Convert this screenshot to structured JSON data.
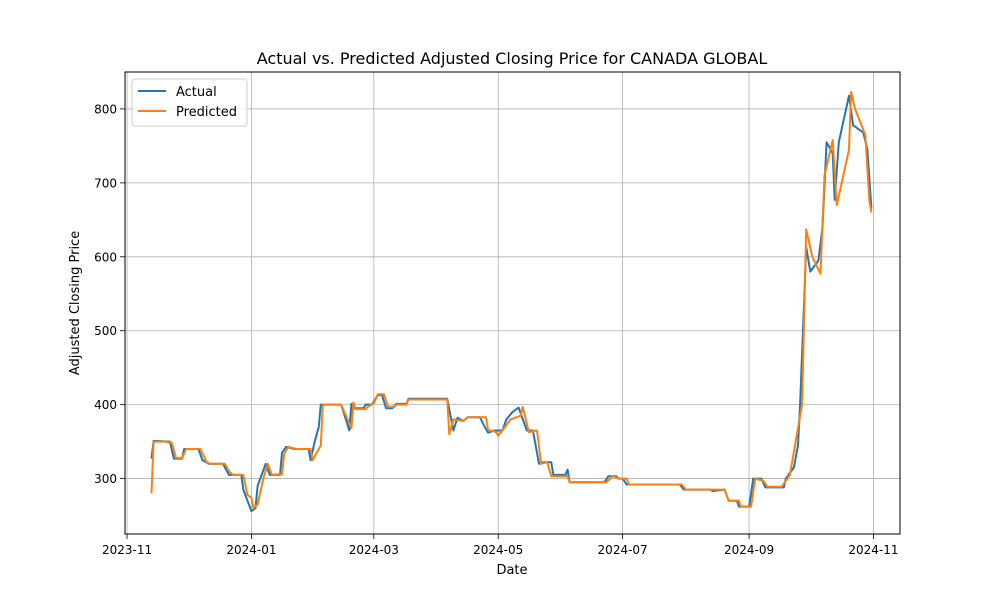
{
  "chart_data": {
    "type": "line",
    "title": "Actual vs. Predicted Adjusted Closing Price for CANADA GLOBAL",
    "xlabel": "Date",
    "ylabel": "Adjusted Closing Price",
    "grid": true,
    "legend_position": "top-left",
    "xlim": [
      "2023-10-31",
      "2024-11-14"
    ],
    "ylim": [
      225,
      850
    ],
    "x_ticks": [
      "2023-11",
      "2024-01",
      "2024-03",
      "2024-05",
      "2024-07",
      "2024-09",
      "2024-11"
    ],
    "x_tick_dates": [
      "2023-11-01",
      "2024-01-01",
      "2024-03-01",
      "2024-05-01",
      "2024-07-01",
      "2024-09-01",
      "2024-11-01"
    ],
    "y_ticks": [
      300,
      400,
      500,
      600,
      700,
      800
    ],
    "series": [
      {
        "name": "Actual",
        "color": "#1f77b4",
        "points": [
          [
            "2023-11-13",
            327
          ],
          [
            "2023-11-14",
            351
          ],
          [
            "2023-11-22",
            350
          ],
          [
            "2023-11-24",
            327
          ],
          [
            "2023-11-28",
            327
          ],
          [
            "2023-11-29",
            340
          ],
          [
            "2023-12-06",
            340
          ],
          [
            "2023-12-08",
            325
          ],
          [
            "2023-12-11",
            320
          ],
          [
            "2023-12-18",
            320
          ],
          [
            "2023-12-21",
            305
          ],
          [
            "2023-12-27",
            305
          ],
          [
            "2023-12-28",
            285
          ],
          [
            "2024-01-01",
            256
          ],
          [
            "2024-01-03",
            260
          ],
          [
            "2024-01-04",
            290
          ],
          [
            "2024-01-08",
            320
          ],
          [
            "2024-01-10",
            305
          ],
          [
            "2024-01-15",
            305
          ],
          [
            "2024-01-16",
            335
          ],
          [
            "2024-01-18",
            343
          ],
          [
            "2024-01-22",
            340
          ],
          [
            "2024-01-29",
            340
          ],
          [
            "2024-01-30",
            325
          ],
          [
            "2024-02-01",
            350
          ],
          [
            "2024-02-03",
            370
          ],
          [
            "2024-02-04",
            400
          ],
          [
            "2024-02-14",
            400
          ],
          [
            "2024-02-18",
            365
          ],
          [
            "2024-02-19",
            401
          ],
          [
            "2024-02-20",
            395
          ],
          [
            "2024-02-25",
            395
          ],
          [
            "2024-02-26",
            400
          ],
          [
            "2024-02-29",
            400
          ],
          [
            "2024-03-03",
            413
          ],
          [
            "2024-03-05",
            413
          ],
          [
            "2024-03-07",
            395
          ],
          [
            "2024-03-10",
            395
          ],
          [
            "2024-03-12",
            401
          ],
          [
            "2024-03-17",
            401
          ],
          [
            "2024-03-18",
            408
          ],
          [
            "2024-04-02",
            408
          ],
          [
            "2024-04-06",
            408
          ],
          [
            "2024-04-09",
            365
          ],
          [
            "2024-04-11",
            382
          ],
          [
            "2024-04-14",
            378
          ],
          [
            "2024-04-16",
            383
          ],
          [
            "2024-04-22",
            383
          ],
          [
            "2024-04-24",
            372
          ],
          [
            "2024-04-26",
            362
          ],
          [
            "2024-04-29",
            365
          ],
          [
            "2024-05-03",
            365
          ],
          [
            "2024-05-05",
            380
          ],
          [
            "2024-05-08",
            390
          ],
          [
            "2024-05-11",
            396
          ],
          [
            "2024-05-15",
            365
          ],
          [
            "2024-05-18",
            365
          ],
          [
            "2024-05-21",
            320
          ],
          [
            "2024-05-23",
            322
          ],
          [
            "2024-05-27",
            322
          ],
          [
            "2024-05-28",
            305
          ],
          [
            "2024-06-03",
            305
          ],
          [
            "2024-06-04",
            312
          ],
          [
            "2024-06-05",
            295
          ],
          [
            "2024-06-14",
            295
          ],
          [
            "2024-06-22",
            295
          ],
          [
            "2024-06-24",
            303
          ],
          [
            "2024-06-28",
            303
          ],
          [
            "2024-06-29",
            300
          ],
          [
            "2024-07-01",
            300
          ],
          [
            "2024-07-03",
            292
          ],
          [
            "2024-07-10",
            292
          ],
          [
            "2024-07-29",
            292
          ],
          [
            "2024-07-31",
            285
          ],
          [
            "2024-08-13",
            285
          ],
          [
            "2024-08-14",
            283
          ],
          [
            "2024-08-20",
            285
          ],
          [
            "2024-08-22",
            270
          ],
          [
            "2024-08-26",
            270
          ],
          [
            "2024-08-27",
            262
          ],
          [
            "2024-09-01",
            262
          ],
          [
            "2024-09-02",
            280
          ],
          [
            "2024-09-03",
            300
          ],
          [
            "2024-09-07",
            300
          ],
          [
            "2024-09-09",
            288
          ],
          [
            "2024-09-18",
            288
          ],
          [
            "2024-09-19",
            300
          ],
          [
            "2024-09-23",
            315
          ],
          [
            "2024-09-25",
            345
          ],
          [
            "2024-09-26",
            400
          ],
          [
            "2024-09-29",
            613
          ],
          [
            "2024-10-01",
            580
          ],
          [
            "2024-10-05",
            595
          ],
          [
            "2024-10-07",
            640
          ],
          [
            "2024-10-09",
            755
          ],
          [
            "2024-10-12",
            740
          ],
          [
            "2024-10-13",
            677
          ],
          [
            "2024-10-15",
            755
          ],
          [
            "2024-10-20",
            818
          ],
          [
            "2024-10-22",
            778
          ],
          [
            "2024-10-27",
            768
          ],
          [
            "2024-10-29",
            745
          ],
          [
            "2024-10-31",
            665
          ]
        ]
      },
      {
        "name": "Predicted",
        "color": "#ff7f0e",
        "points": [
          [
            "2023-11-13",
            280
          ],
          [
            "2023-11-14",
            350
          ],
          [
            "2023-11-20",
            350
          ],
          [
            "2023-11-23",
            348
          ],
          [
            "2023-11-25",
            328
          ],
          [
            "2023-11-28",
            328
          ],
          [
            "2023-11-30",
            340
          ],
          [
            "2023-12-07",
            340
          ],
          [
            "2023-12-10",
            322
          ],
          [
            "2023-12-12",
            320
          ],
          [
            "2023-12-19",
            320
          ],
          [
            "2023-12-21",
            310
          ],
          [
            "2023-12-23",
            305
          ],
          [
            "2023-12-28",
            305
          ],
          [
            "2023-12-30",
            278
          ],
          [
            "2024-01-01",
            274
          ],
          [
            "2024-01-02",
            260
          ],
          [
            "2024-01-04",
            265
          ],
          [
            "2024-01-07",
            302
          ],
          [
            "2024-01-09",
            320
          ],
          [
            "2024-01-11",
            305
          ],
          [
            "2024-01-16",
            306
          ],
          [
            "2024-01-17",
            333
          ],
          [
            "2024-01-19",
            343
          ],
          [
            "2024-01-23",
            340
          ],
          [
            "2024-01-30",
            340
          ],
          [
            "2024-01-31",
            325
          ],
          [
            "2024-02-04",
            345
          ],
          [
            "2024-02-05",
            400
          ],
          [
            "2024-02-14",
            400
          ],
          [
            "2024-02-19",
            368
          ],
          [
            "2024-02-20",
            403
          ],
          [
            "2024-02-21",
            394
          ],
          [
            "2024-02-26",
            394
          ],
          [
            "2024-02-27",
            397
          ],
          [
            "2024-03-01",
            402
          ],
          [
            "2024-03-03",
            414
          ],
          [
            "2024-03-06",
            414
          ],
          [
            "2024-03-08",
            397
          ],
          [
            "2024-03-11",
            397
          ],
          [
            "2024-03-12",
            400
          ],
          [
            "2024-03-17",
            400
          ],
          [
            "2024-03-18",
            407
          ],
          [
            "2024-04-06",
            407
          ],
          [
            "2024-04-07",
            360
          ],
          [
            "2024-04-09",
            380
          ],
          [
            "2024-04-14",
            378
          ],
          [
            "2024-04-16",
            383
          ],
          [
            "2024-04-25",
            383
          ],
          [
            "2024-04-26",
            366
          ],
          [
            "2024-04-30",
            363
          ],
          [
            "2024-05-01",
            358
          ],
          [
            "2024-05-03",
            365
          ],
          [
            "2024-05-07",
            380
          ],
          [
            "2024-05-12",
            385
          ],
          [
            "2024-05-13",
            397
          ],
          [
            "2024-05-16",
            363
          ],
          [
            "2024-05-20",
            365
          ],
          [
            "2024-05-22",
            320
          ],
          [
            "2024-05-25",
            322
          ],
          [
            "2024-05-27",
            303
          ],
          [
            "2024-06-04",
            303
          ],
          [
            "2024-06-05",
            295
          ],
          [
            "2024-06-23",
            295
          ],
          [
            "2024-06-25",
            300
          ],
          [
            "2024-06-26",
            303
          ],
          [
            "2024-06-30",
            300
          ],
          [
            "2024-07-03",
            300
          ],
          [
            "2024-07-04",
            292
          ],
          [
            "2024-07-30",
            292
          ],
          [
            "2024-08-01",
            285
          ],
          [
            "2024-08-20",
            285
          ],
          [
            "2024-08-22",
            270
          ],
          [
            "2024-08-27",
            270
          ],
          [
            "2024-08-28",
            262
          ],
          [
            "2024-09-02",
            262
          ],
          [
            "2024-09-04",
            300
          ],
          [
            "2024-09-08",
            297
          ],
          [
            "2024-09-10",
            289
          ],
          [
            "2024-09-17",
            289
          ],
          [
            "2024-09-21",
            305
          ],
          [
            "2024-09-27",
            400
          ],
          [
            "2024-09-29",
            637
          ],
          [
            "2024-10-02",
            600
          ],
          [
            "2024-10-06",
            577
          ],
          [
            "2024-10-08",
            710
          ],
          [
            "2024-10-12",
            758
          ],
          [
            "2024-10-14",
            670
          ],
          [
            "2024-10-20",
            745
          ],
          [
            "2024-10-21",
            823
          ],
          [
            "2024-10-23",
            800
          ],
          [
            "2024-10-28",
            765
          ],
          [
            "2024-10-30",
            675
          ],
          [
            "2024-10-31",
            660
          ]
        ]
      }
    ]
  }
}
